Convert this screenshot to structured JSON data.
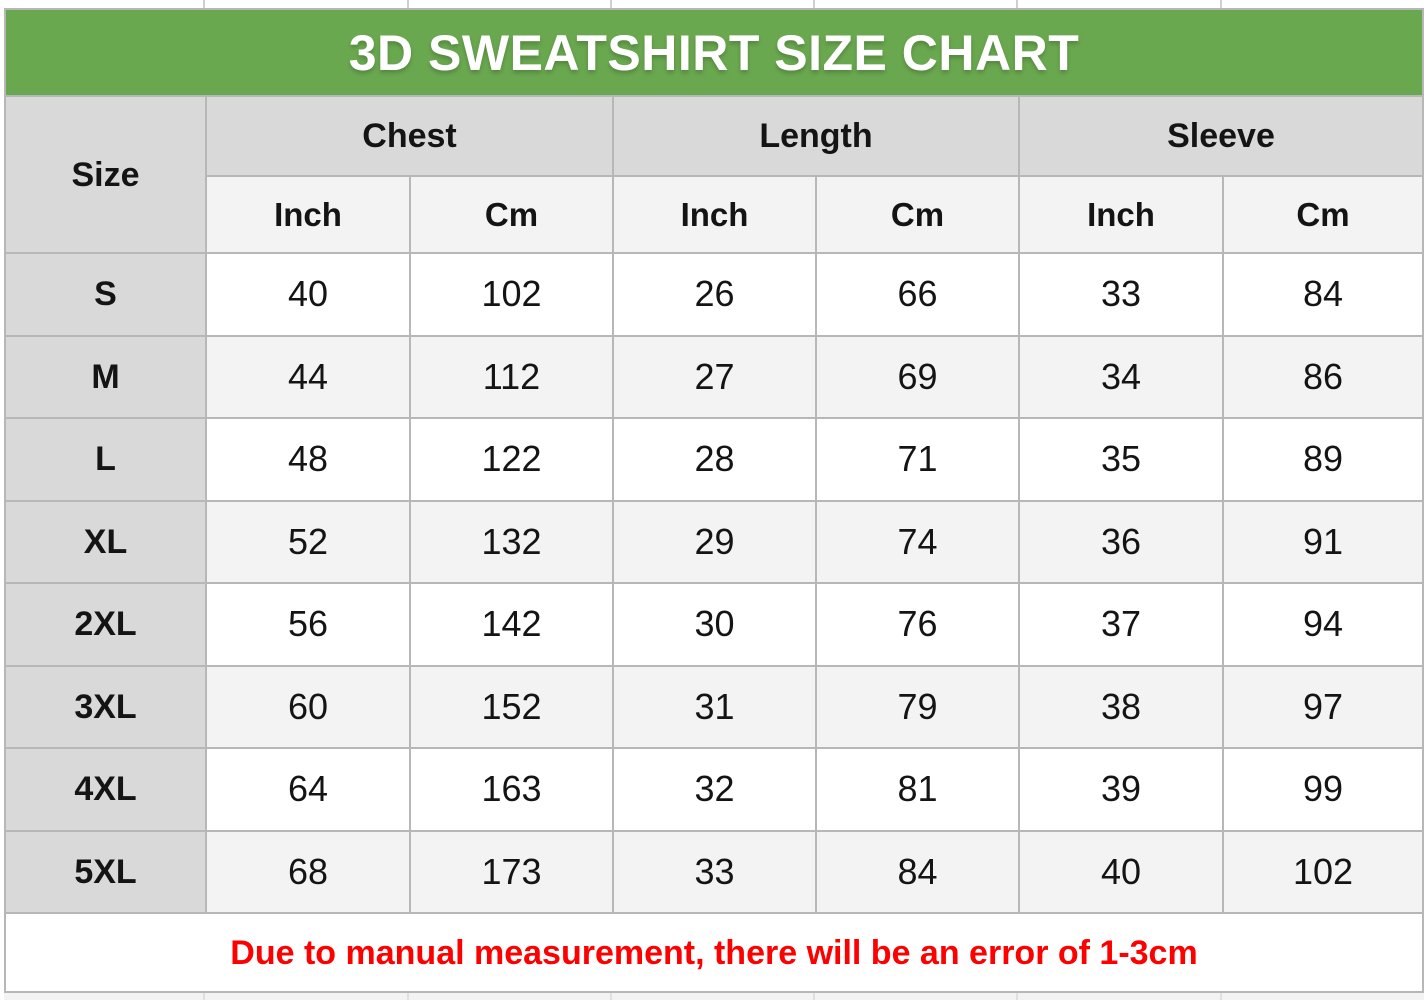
{
  "chart_data": {
    "type": "table",
    "title": "3D SWEATSHIRT SIZE CHART",
    "column_groups": [
      "Chest",
      "Length",
      "Sleeve"
    ],
    "columns": [
      "Size",
      "Chest Inch",
      "Chest Cm",
      "Length Inch",
      "Length Cm",
      "Sleeve Inch",
      "Sleeve Cm"
    ],
    "rows": [
      [
        "S",
        40,
        102,
        26,
        66,
        33,
        84
      ],
      [
        "M",
        44,
        112,
        27,
        69,
        34,
        86
      ],
      [
        "L",
        48,
        122,
        28,
        71,
        35,
        89
      ],
      [
        "XL",
        52,
        132,
        29,
        74,
        36,
        91
      ],
      [
        "2XL",
        56,
        142,
        30,
        76,
        37,
        94
      ],
      [
        "3XL",
        60,
        152,
        31,
        79,
        38,
        97
      ],
      [
        "4XL",
        64,
        163,
        32,
        81,
        39,
        99
      ],
      [
        "5XL",
        68,
        173,
        33,
        84,
        40,
        102
      ]
    ],
    "footnote": "Due to manual measurement, there will be an error of 1-3cm"
  },
  "header": {
    "size_label": "Size",
    "groups": [
      "Chest",
      "Length",
      "Sleeve"
    ],
    "subheaders": [
      "Inch",
      "Cm",
      "Inch",
      "Cm",
      "Inch",
      "Cm"
    ]
  },
  "colors": {
    "title_bg": "#6aa84f",
    "title_text": "#ffffff",
    "header_bg": "#d9d9d9",
    "subheader_bg": "#f3f3f3",
    "alt_row_bg": "#f3f3f3",
    "row_bg": "#ffffff",
    "grid_line": "#b7b7b7",
    "note_text": "#fe0000"
  }
}
